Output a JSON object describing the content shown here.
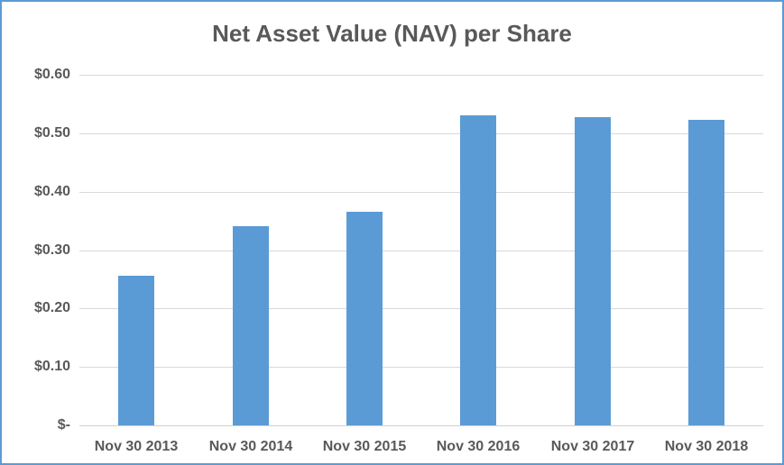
{
  "frame": {
    "border_color": "#5b9bd5",
    "background_color": "#ffffff"
  },
  "chart_data": {
    "type": "bar",
    "title": "Net Asset Value (NAV) per Share",
    "xlabel": "",
    "ylabel": "",
    "categories": [
      "Nov 30 2013",
      "Nov 30 2014",
      "Nov 30 2015",
      "Nov 30 2016",
      "Nov 30 2017",
      "Nov 30 2018"
    ],
    "values": [
      0.256,
      0.341,
      0.366,
      0.53,
      0.527,
      0.523
    ],
    "ylim": [
      0,
      0.6
    ],
    "yticks": [
      {
        "value": 0.6,
        "label": "$0.60"
      },
      {
        "value": 0.5,
        "label": "$0.50"
      },
      {
        "value": 0.4,
        "label": "$0.40"
      },
      {
        "value": 0.3,
        "label": "$0.30"
      },
      {
        "value": 0.2,
        "label": "$0.20"
      },
      {
        "value": 0.1,
        "label": "$0.10"
      },
      {
        "value": 0.0,
        "label": "$-"
      }
    ],
    "grid": "horizontal",
    "legend_position": "none",
    "colors": {
      "bar": "#5b9bd5",
      "gridline": "#d9d9d9",
      "axis_line": "#d0d0d0",
      "title_text": "#595959",
      "tick_text": "#595959"
    }
  }
}
